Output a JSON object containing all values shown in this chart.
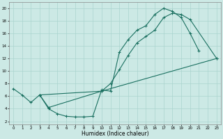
{
  "xlabel": "Humidex (Indice chaleur)",
  "bg_color": "#cce9e5",
  "grid_color": "#aad4cf",
  "line_color": "#1a7060",
  "xlim": [
    -0.5,
    23.5
  ],
  "ylim": [
    1.5,
    21
  ],
  "xticks": [
    0,
    1,
    2,
    3,
    4,
    5,
    6,
    7,
    8,
    9,
    10,
    11,
    12,
    13,
    14,
    15,
    16,
    17,
    18,
    19,
    20,
    21,
    22,
    23
  ],
  "yticks": [
    2,
    4,
    6,
    8,
    10,
    12,
    14,
    16,
    18,
    20
  ],
  "line1_x": [
    0,
    1,
    2,
    3,
    4,
    5,
    6,
    7,
    8,
    9,
    10,
    11,
    12,
    13,
    14,
    15,
    16,
    17,
    18,
    19,
    20,
    21
  ],
  "line1_y": [
    7.2,
    6.2,
    5.0,
    6.2,
    4.0,
    3.2,
    2.8,
    2.7,
    2.7,
    2.8,
    7.0,
    6.8,
    13.0,
    15.0,
    16.5,
    17.2,
    19.0,
    20.0,
    19.5,
    18.5,
    16.0,
    13.2
  ],
  "line2_x": [
    3,
    4,
    10,
    11,
    12,
    13,
    14,
    15,
    16,
    17,
    18,
    19,
    20,
    23
  ],
  "line2_y": [
    6.2,
    4.2,
    6.8,
    8.0,
    10.2,
    12.5,
    14.5,
    15.5,
    16.5,
    18.5,
    19.2,
    19.0,
    18.2,
    12.0
  ],
  "line3_x": [
    3,
    10,
    23
  ],
  "line3_y": [
    6.2,
    6.8,
    12.0
  ]
}
